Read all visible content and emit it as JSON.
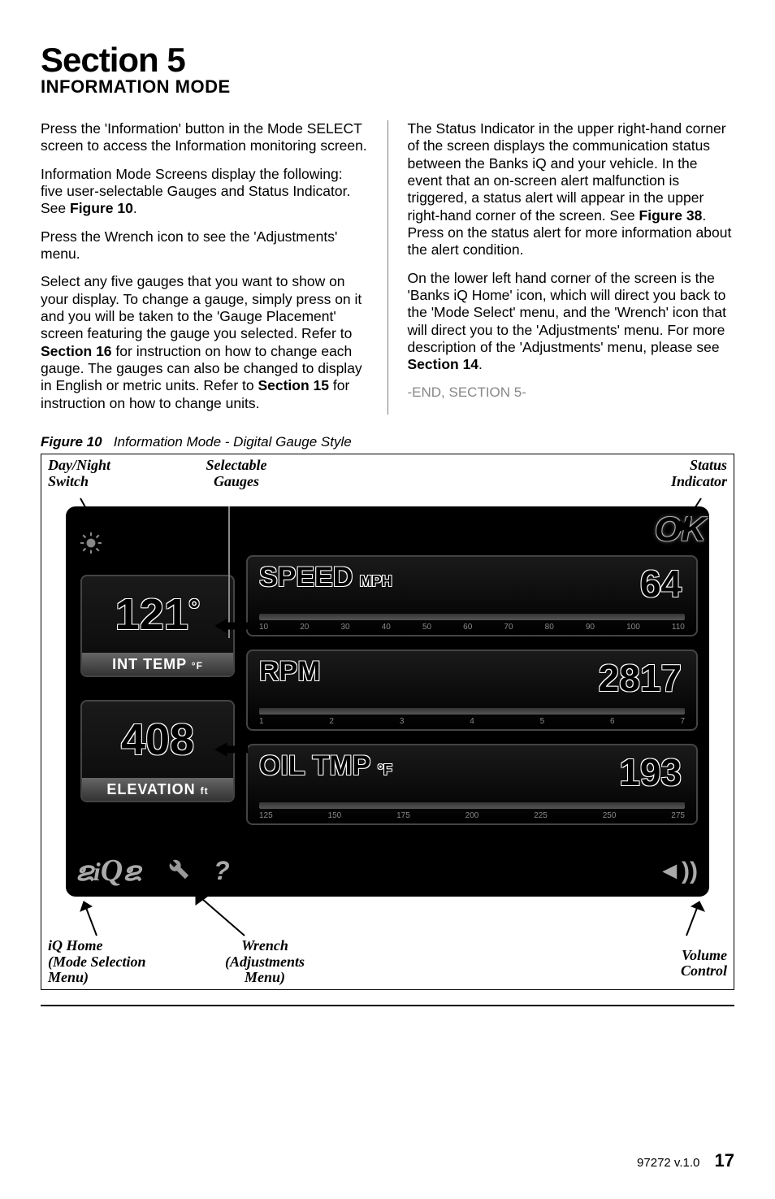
{
  "heading": {
    "title": "Section 5",
    "subtitle": "INFORMATION MODE"
  },
  "left_paragraphs": [
    {
      "type": "plain",
      "text": "Press the 'Information' button in the Mode SELECT screen to access the Information monitoring screen."
    },
    {
      "type": "with_bold",
      "pre": "Information Mode Screens  display the following: five user-selectable Gauges and Status Indicator. See ",
      "bold": "Figure 10",
      "post": "."
    },
    {
      "type": "plain",
      "text": "Press the Wrench icon to see the 'Adjustments' menu."
    },
    {
      "type": "two_bold",
      "pre": "Select any five gauges that you want to show on your display. To change a gauge, simply press on it and you will be taken to the 'Gauge Placement' screen featuring the gauge you selected. Refer to ",
      "bold1": "Section 16",
      "mid": " for instruction on how to change each gauge. The gauges can also be changed to display in English or metric units. Refer to ",
      "bold2": "Section 15",
      "post": " for instruction on how to change units."
    }
  ],
  "right_paragraphs": [
    {
      "type": "with_bold",
      "pre": "The Status Indicator in the upper right-hand corner of the screen displays the communication status between the Banks iQ and your vehicle. In the event that an on-screen alert malfunction is triggered, a status alert will appear in the upper right-hand corner of the screen. See ",
      "bold": "Figure 38",
      "post": ". Press on the status alert for more information about the alert condition."
    },
    {
      "type": "with_bold",
      "pre": "On the lower left hand corner of the screen is the 'Banks iQ Home' icon, which will direct you back to the 'Mode Select' menu, and the 'Wrench' icon that will direct you to the 'Adjustments' menu. For more description of the 'Adjustments' menu, please see ",
      "bold": "Section 14",
      "post": "."
    }
  ],
  "end_section": "-END, SECTION 5-",
  "figure": {
    "label_bold": "Figure 10",
    "label_italic": "Information Mode - Digital Gauge Style"
  },
  "callouts": {
    "day_night": "Day/Night\nSwitch",
    "selectable": "Selectable\nGauges",
    "status": "Status\nIndicator",
    "iq_home": "iQ Home\n(Mode Selection\nMenu)",
    "wrench": "Wrench\n(Adjustments\nMenu)",
    "volume": "Volume\nControl"
  },
  "gauges": {
    "small1": {
      "value": "121",
      "unit_symbol": "°",
      "label": "INT TEMP",
      "label_unit": "°F"
    },
    "small2": {
      "value": "408",
      "label": "ELEVATION",
      "label_unit": "ft"
    },
    "wide1": {
      "title": "SPEED",
      "unit": "MPH",
      "value": "64",
      "ticks": [
        "10",
        "20",
        "30",
        "40",
        "50",
        "60",
        "70",
        "80",
        "90",
        "100",
        "110"
      ]
    },
    "wide2": {
      "title": "RPM",
      "unit": "",
      "value": "2817",
      "ticks": [
        "1",
        "2",
        "3",
        "4",
        "5",
        "6",
        "7"
      ]
    },
    "wide3": {
      "title": "OIL TMP",
      "unit": "°F",
      "value": "193",
      "ticks": [
        "125",
        "150",
        "175",
        "200",
        "225",
        "250",
        "275"
      ]
    }
  },
  "status_badge": "OK",
  "toolbar": {
    "home": "iQ",
    "wrench": "🔧",
    "help": "?",
    "volume": "◄))"
  },
  "footer": {
    "doc": "97272 v.1.0",
    "page": "17"
  },
  "colors": {
    "bg": "#ffffff",
    "text": "#000000",
    "muted": "#888888",
    "panel": "#000000"
  }
}
